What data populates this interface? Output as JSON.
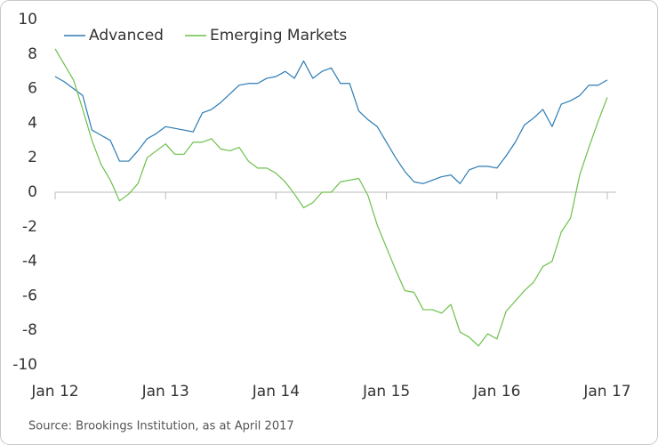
{
  "chart_data": {
    "type": "line",
    "categories": [
      "Jan 12",
      null,
      null,
      null,
      null,
      null,
      null,
      null,
      null,
      null,
      null,
      null,
      "Jan 13",
      null,
      null,
      null,
      null,
      null,
      null,
      null,
      null,
      null,
      null,
      null,
      "Jan 14",
      null,
      null,
      null,
      null,
      null,
      null,
      null,
      null,
      null,
      null,
      null,
      "Jan 15",
      null,
      null,
      null,
      null,
      null,
      null,
      null,
      null,
      null,
      null,
      null,
      "Jan 16",
      null,
      null,
      null,
      null,
      null,
      null,
      null,
      null,
      null,
      null,
      null,
      "Jan 17"
    ],
    "series": [
      {
        "name": "Advanced",
        "color": "#2b7bb4",
        "values": [
          6.7,
          6.4,
          6.0,
          5.6,
          3.6,
          3.3,
          3.0,
          1.8,
          1.8,
          2.4,
          3.1,
          3.4,
          3.8,
          3.7,
          3.6,
          3.5,
          4.6,
          4.8,
          5.2,
          5.7,
          6.2,
          6.3,
          6.3,
          6.6,
          6.7,
          7.0,
          6.6,
          7.6,
          6.6,
          7.0,
          7.2,
          6.3,
          6.3,
          4.7,
          4.2,
          3.8,
          2.9,
          2.0,
          1.2,
          0.6,
          0.5,
          0.7,
          0.9,
          1.0,
          0.5,
          1.3,
          1.5,
          1.5,
          1.4,
          2.1,
          2.9,
          3.9,
          4.3,
          4.8,
          3.8,
          5.1,
          5.3,
          5.6,
          6.2,
          6.2,
          6.5
        ]
      },
      {
        "name": "Emerging Markets",
        "color": "#6cc04a",
        "values": [
          8.3,
          7.4,
          6.5,
          4.8,
          3.0,
          1.6,
          0.7,
          -0.5,
          -0.1,
          0.5,
          2.0,
          2.4,
          2.8,
          2.2,
          2.2,
          2.9,
          2.9,
          3.1,
          2.5,
          2.4,
          2.6,
          1.8,
          1.4,
          1.4,
          1.1,
          0.6,
          -0.1,
          -0.9,
          -0.6,
          0.0,
          0.0,
          0.6,
          0.7,
          0.8,
          -0.2,
          -1.9,
          -3.2,
          -4.5,
          -5.7,
          -5.8,
          -6.8,
          -6.8,
          -7.0,
          -6.5,
          -8.1,
          -8.4,
          -8.9,
          -8.2,
          -8.5,
          -6.9,
          -6.3,
          -5.7,
          -5.2,
          -4.3,
          -4.0,
          -2.3,
          -1.5,
          1.0,
          2.6,
          4.1,
          5.5
        ]
      }
    ],
    "ylim": [
      -10,
      10
    ],
    "yticks": [
      -10,
      -8,
      -6,
      -4,
      -2,
      0,
      2,
      4,
      6,
      8,
      10
    ],
    "grid": false,
    "legend": "top-left",
    "source": "Source: Brookings Institution, as at April 2017"
  }
}
